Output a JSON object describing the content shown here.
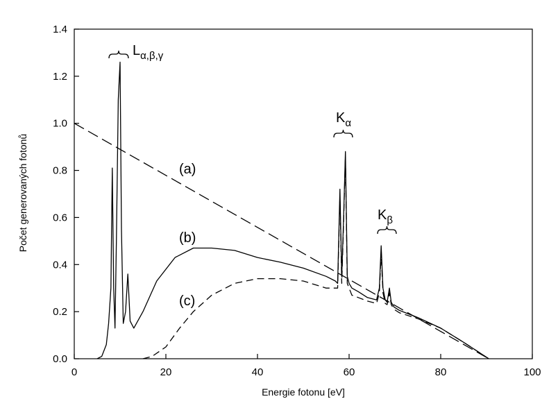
{
  "chart_data": {
    "type": "line",
    "xlabel": "Energie fotonu [eV]",
    "ylabel": "Počet generovaných fotonů",
    "xlim": [
      0,
      100
    ],
    "ylim": [
      0,
      1.4
    ],
    "x_ticks": [
      "0",
      "20",
      "40",
      "60",
      "80",
      "100"
    ],
    "y_ticks": [
      "0.0",
      "0.2",
      "0.4",
      "0.6",
      "0.8",
      "1.0",
      "1.2",
      "1.4"
    ],
    "x_tick_values": [
      0,
      20,
      40,
      60,
      80,
      100
    ],
    "y_tick_values": [
      0,
      0.2,
      0.4,
      0.6,
      0.8,
      1.0,
      1.2,
      1.4
    ],
    "grid": false,
    "series": [
      {
        "label": "(a)",
        "style": "long-dash",
        "x": [
          0,
          90.5
        ],
        "y": [
          1.0,
          0.0
        ]
      },
      {
        "label": "(b)",
        "style": "solid",
        "x": [
          5,
          6,
          7,
          7.5,
          8,
          8.3,
          8.6,
          8.9,
          9.2,
          9.6,
          10.0,
          10.3,
          10.7,
          11.2,
          11.7,
          12.2,
          13,
          15,
          18,
          22,
          26,
          30,
          35,
          40,
          45,
          50,
          55,
          57,
          57.5,
          58,
          58.4,
          58.8,
          59.2,
          59.6,
          60,
          60.6,
          62,
          64,
          66,
          66.6,
          67,
          67.4,
          67.9,
          68.3,
          68.8,
          69.2,
          69.8,
          71,
          75,
          80,
          85,
          90.5
        ],
        "y": [
          0.0,
          0.01,
          0.06,
          0.15,
          0.3,
          0.81,
          0.3,
          0.13,
          0.5,
          1.1,
          1.26,
          0.55,
          0.15,
          0.2,
          0.36,
          0.16,
          0.13,
          0.2,
          0.33,
          0.43,
          0.47,
          0.47,
          0.46,
          0.43,
          0.41,
          0.385,
          0.35,
          0.33,
          0.32,
          0.72,
          0.35,
          0.6,
          0.88,
          0.35,
          0.32,
          0.3,
          0.285,
          0.26,
          0.25,
          0.3,
          0.48,
          0.3,
          0.25,
          0.24,
          0.3,
          0.24,
          0.22,
          0.205,
          0.175,
          0.13,
          0.07,
          0.0
        ]
      },
      {
        "label": "(c)",
        "style": "dash",
        "x": [
          15,
          17,
          20,
          23,
          26,
          30,
          35,
          40,
          45,
          50,
          55,
          57,
          57.5,
          58,
          58.4,
          58.8,
          59.2,
          59.6,
          60,
          60.6,
          62,
          64,
          66,
          66.6,
          67,
          67.4,
          67.9,
          68.3,
          68.8,
          69.2,
          69.8,
          71,
          75,
          80,
          85,
          90.5
        ],
        "y": [
          0.0,
          0.01,
          0.05,
          0.13,
          0.2,
          0.27,
          0.32,
          0.34,
          0.34,
          0.33,
          0.3,
          0.3,
          0.3,
          0.69,
          0.32,
          0.58,
          0.86,
          0.32,
          0.3,
          0.27,
          0.26,
          0.245,
          0.235,
          0.28,
          0.45,
          0.28,
          0.235,
          0.23,
          0.28,
          0.23,
          0.21,
          0.195,
          0.17,
          0.13,
          0.07,
          0.0
        ]
      }
    ],
    "annotations": [
      {
        "id": "a",
        "text": "(a)"
      },
      {
        "id": "b",
        "text": "(b)"
      },
      {
        "id": "c",
        "text": "(c)"
      },
      {
        "id": "L",
        "text": "L",
        "sub": "α,β,γ"
      },
      {
        "id": "Ka",
        "text": "K",
        "sub": "α"
      },
      {
        "id": "Kb",
        "text": "K",
        "sub": "β"
      }
    ]
  }
}
